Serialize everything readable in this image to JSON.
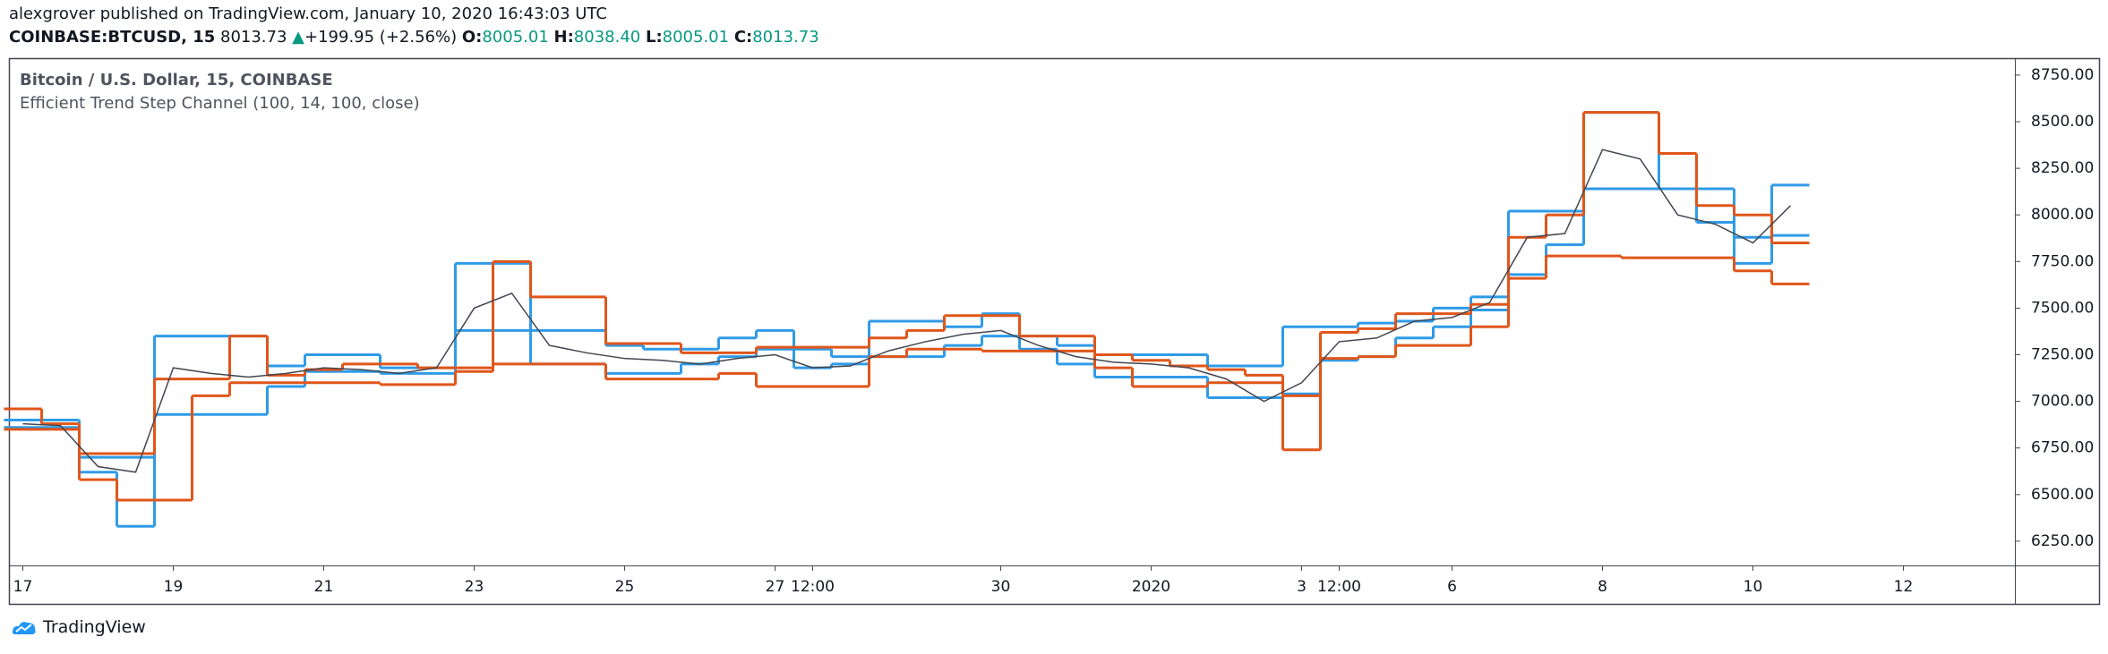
{
  "header": {
    "published": "alexgrover published on TradingView.com, January 10, 2020 16:43:03 UTC",
    "symbol": "COINBASE:BTCUSD, 15",
    "last": "8013.73",
    "arrow": "▲",
    "change": "+199.95 (+2.56%)",
    "o_label": "O:",
    "o": "8005.01",
    "h_label": "H:",
    "h": "8038.40",
    "l_label": "L:",
    "l": "8005.01",
    "c_label": "C:",
    "c": "8013.73"
  },
  "footer": {
    "brand": "TradingView"
  },
  "chart_data": {
    "type": "line",
    "title": "Bitcoin / U.S. Dollar, 15, COINBASE",
    "categories": [
      "17",
      null,
      null,
      null,
      "19",
      null,
      null,
      null,
      "21",
      null,
      null,
      null,
      "23",
      null,
      null,
      null,
      "25",
      null,
      null,
      null,
      "27",
      "12:00",
      null,
      null,
      null,
      null,
      "30",
      null,
      null,
      null,
      "2020",
      null,
      null,
      null,
      "3",
      "12:00",
      null,
      null,
      "6",
      null,
      null,
      null,
      "8",
      null,
      null,
      null,
      "10",
      null,
      null,
      null,
      "12"
    ],
    "ylim": [
      6120,
      8836
    ],
    "yticks": [
      {
        "value": 6250,
        "label": "6250.00"
      },
      {
        "value": 6500,
        "label": "6500.00"
      },
      {
        "value": 6750,
        "label": "6750.00"
      },
      {
        "value": 7000,
        "label": "7000.00"
      },
      {
        "value": 7250,
        "label": "7250.00"
      },
      {
        "value": 7500,
        "label": "7500.00"
      },
      {
        "value": 7750,
        "label": "7750.00"
      },
      {
        "value": 8000,
        "label": "8000.00"
      },
      {
        "value": 8250,
        "label": "8250.00"
      },
      {
        "value": 8500,
        "label": "8500.00"
      },
      {
        "value": 8750,
        "label": "8750.00"
      }
    ],
    "series": [
      {
        "name": "Bitcoin / U.S. Dollar, 15, COINBASE",
        "color": "#434651",
        "values": [
          6880,
          6870,
          6650,
          6620,
          7180,
          7150,
          7130,
          7150,
          7180,
          7170,
          7150,
          7180,
          7500,
          7580,
          7300,
          7260,
          7230,
          7220,
          7200,
          7230,
          7250,
          7180,
          7190,
          7270,
          7320,
          7360,
          7380,
          7300,
          7240,
          7210,
          7200,
          7180,
          7120,
          7000,
          7100,
          7320,
          7340,
          7430,
          7450,
          7530,
          7880,
          7900,
          8350,
          8300,
          8000,
          7950,
          7850,
          8050,
          null,
          null,
          null
        ]
      }
    ],
    "indicator": {
      "name": "Efficient Trend Step Channel (100, 14, 100, close)",
      "lines": [
        {
          "color": "#2f9be8",
          "values": [
            6900,
            6900,
            6700,
            6700,
            7350,
            7350,
            7350,
            7190,
            7250,
            7250,
            7180,
            7180,
            7740,
            7740,
            7380,
            7380,
            7300,
            7280,
            7280,
            7340,
            7380,
            7280,
            7240,
            7430,
            7430,
            7400,
            7470,
            7350,
            7300,
            7250,
            7250,
            7250,
            7190,
            7190,
            7400,
            7400,
            7420,
            7430,
            7500,
            7560,
            8020,
            8020,
            8550,
            8550,
            8140,
            8140,
            7880,
            8160,
            null,
            null,
            null
          ]
        },
        {
          "color": "#2f9be8",
          "values": [
            6860,
            6860,
            6620,
            6330,
            6930,
            6930,
            6930,
            7080,
            7160,
            7160,
            7150,
            7150,
            7380,
            7380,
            7200,
            7200,
            7150,
            7150,
            7200,
            7240,
            7280,
            7180,
            7200,
            7240,
            7240,
            7300,
            7350,
            7280,
            7200,
            7130,
            7130,
            7130,
            7020,
            7020,
            7040,
            7220,
            7240,
            7340,
            7400,
            7490,
            7680,
            7840,
            8140,
            8140,
            8140,
            7960,
            7740,
            7890,
            null,
            null,
            null
          ]
        },
        {
          "color": "#e0561a",
          "values": [
            6960,
            6880,
            6720,
            6720,
            7120,
            7120,
            7350,
            7140,
            7170,
            7200,
            7200,
            7180,
            7180,
            7750,
            7560,
            7560,
            7310,
            7310,
            7260,
            7260,
            7290,
            7290,
            7290,
            7340,
            7380,
            7460,
            7460,
            7350,
            7350,
            7250,
            7220,
            7190,
            7170,
            7140,
            7030,
            7370,
            7390,
            7470,
            7470,
            7520,
            7880,
            8000,
            8550,
            8550,
            8330,
            8050,
            8000,
            7850,
            null,
            null,
            null
          ]
        },
        {
          "color": "#e0561a",
          "values": [
            6850,
            6850,
            6580,
            6470,
            6470,
            7030,
            7100,
            7100,
            7100,
            7100,
            7090,
            7090,
            7160,
            7200,
            7200,
            7200,
            7120,
            7120,
            7120,
            7150,
            7080,
            7080,
            7080,
            7240,
            7280,
            7280,
            7270,
            7270,
            7270,
            7180,
            7080,
            7080,
            7100,
            7100,
            6740,
            7230,
            7240,
            7300,
            7300,
            7400,
            7660,
            7780,
            7780,
            7770,
            7770,
            7770,
            7700,
            7630,
            null,
            null,
            null
          ]
        }
      ]
    }
  }
}
